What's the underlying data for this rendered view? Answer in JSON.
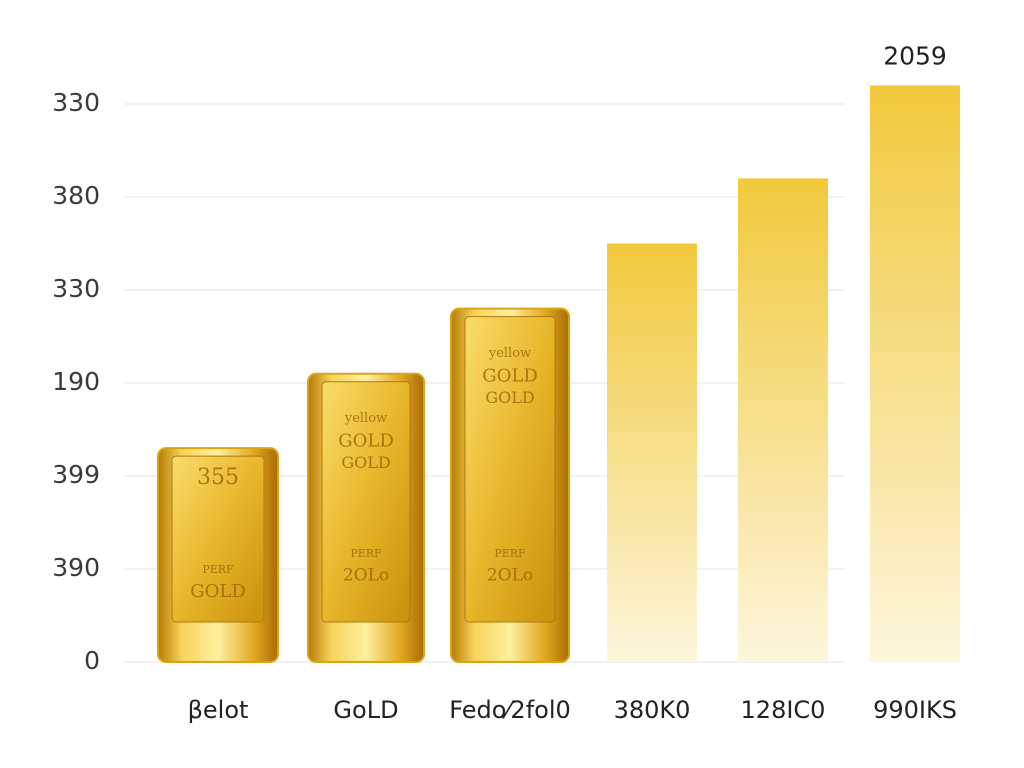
{
  "chart_data": {
    "type": "bar",
    "categories": [
      "βelot",
      "GoLD",
      "Fedo⁄2fol0",
      "380K0",
      "128IC0",
      "990IKS"
    ],
    "values": [
      2.3,
      3.1,
      3.8,
      4.5,
      5.2,
      6.2
    ],
    "colors": [
      "#d9a514",
      "#d9a514",
      "#d9a514",
      "#f2cf4a",
      "#f2cf4a",
      "#efc22a"
    ],
    "inscriptions": [
      [
        "355",
        "PERF",
        "GOLD"
      ],
      [
        "yellow",
        "GOLD",
        "GOLD",
        "PERF",
        "2OLo"
      ],
      [
        "yellow",
        "GOLD",
        "GOLD",
        "PERF",
        "2OLo"
      ],
      [],
      [],
      []
    ],
    "annotations": [
      "2059"
    ],
    "ylim": [
      0,
      6.5
    ],
    "yticks": [
      {
        "value": 0,
        "label": "0"
      },
      {
        "value": 1,
        "label": "390"
      },
      {
        "value": 2,
        "label": "399"
      },
      {
        "value": 3,
        "label": "190"
      },
      {
        "value": 4,
        "label": "330"
      },
      {
        "value": 5,
        "label": "380"
      },
      {
        "value": 6,
        "label": "330"
      }
    ],
    "grid": true
  }
}
